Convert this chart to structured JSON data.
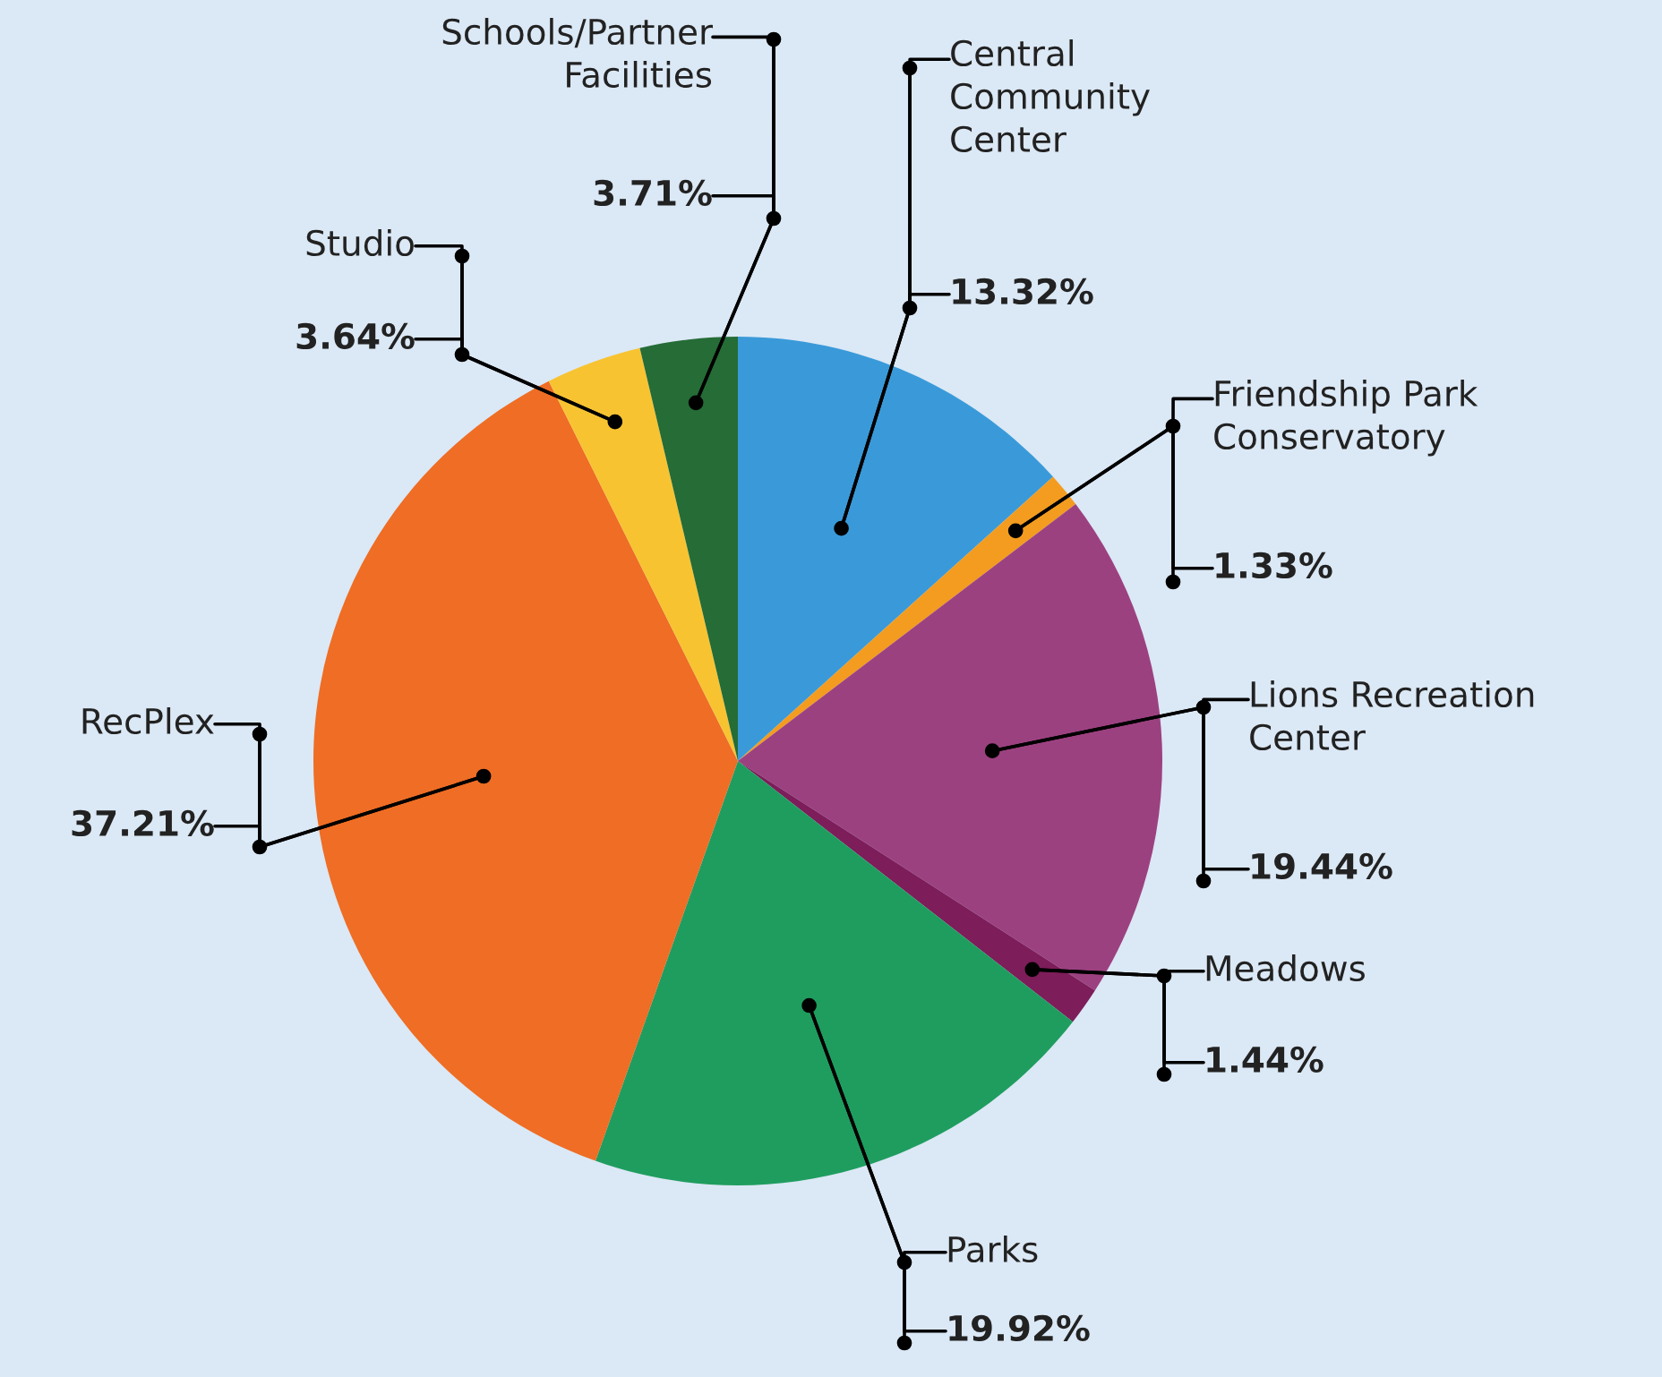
{
  "chart_data": {
    "type": "pie",
    "categories": [
      "Central\nCommunity\nCenter",
      "Friendship Park\nConservatory",
      "Lions Recreation\nCenter",
      "Meadows",
      "Parks",
      "RecPlex",
      "Studio",
      "Schools/Partner\nFacilities"
    ],
    "values": [
      13.32,
      1.33,
      19.44,
      1.44,
      19.92,
      37.21,
      3.64,
      3.71
    ],
    "value_labels": [
      "13.32%",
      "1.33%",
      "19.44%",
      "1.44%",
      "19.92%",
      "37.21%",
      "3.64%",
      "3.71%"
    ],
    "colors": [
      "#3a9ad9",
      "#f39c1f",
      "#9c4180",
      "#7d1d5a",
      "#1f9d5f",
      "#ef6d24",
      "#f8c331",
      "#256c36"
    ]
  }
}
